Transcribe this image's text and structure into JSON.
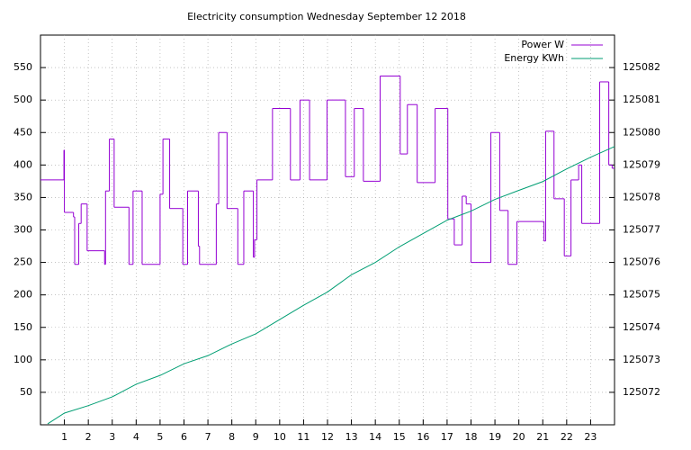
{
  "chart_data": {
    "type": "step-line-dual-axis",
    "title": "Electricity consumption Wednesday September 12 2018",
    "xlim": [
      0,
      24
    ],
    "xticks": [
      1,
      2,
      3,
      4,
      5,
      6,
      7,
      8,
      9,
      10,
      11,
      12,
      13,
      14,
      15,
      16,
      17,
      18,
      19,
      20,
      21,
      22,
      23
    ],
    "ylim": [
      0,
      600
    ],
    "yticks": [
      50,
      100,
      150,
      200,
      250,
      300,
      350,
      400,
      450,
      500,
      550
    ],
    "y2lim": [
      125071,
      125083
    ],
    "y2ticks": [
      125072,
      125073,
      125074,
      125075,
      125076,
      125077,
      125078,
      125079,
      125080,
      125081,
      125082
    ],
    "grid": true,
    "legend": "top-right",
    "series": [
      {
        "name": "Power W",
        "color": "#9400d3",
        "step": true,
        "x": [
          0,
          0.98,
          1.0,
          1.38,
          1.43,
          1.6,
          1.7,
          1.95,
          2.68,
          2.72,
          2.88,
          3.08,
          3.7,
          3.87,
          4.25,
          5.0,
          5.12,
          5.4,
          5.95,
          6.15,
          6.6,
          6.65,
          7.35,
          7.45,
          7.8,
          8.25,
          8.5,
          8.9,
          8.95,
          9.05,
          9.7,
          10.45,
          10.85,
          11.25,
          11.98,
          12.75,
          13.12,
          13.5,
          14.2,
          15.04,
          15.34,
          15.75,
          16.5,
          17.03,
          17.3,
          17.63,
          17.8,
          18.0,
          18.83,
          19.2,
          19.55,
          19.92,
          21.05,
          21.12,
          21.47,
          21.9,
          22.18,
          22.5,
          22.63,
          23.38,
          23.76,
          23.9
        ],
        "values": [
          377,
          423,
          327,
          320,
          247,
          310,
          340,
          268,
          247,
          360,
          440,
          335,
          247,
          360,
          247,
          355,
          440,
          333,
          247,
          360,
          275,
          247,
          340,
          450,
          333,
          247,
          360,
          258,
          285,
          377,
          487,
          377,
          500,
          377,
          500,
          382,
          487,
          375,
          537,
          417,
          493,
          373,
          487,
          317,
          277,
          352,
          340,
          250,
          450,
          330,
          247,
          313,
          283,
          452,
          348,
          260,
          377,
          400,
          310,
          528,
          400,
          395
        ]
      },
      {
        "name": "Energy KWh",
        "color": "#009e73",
        "axis": "y2",
        "x": [
          0.3,
          1,
          2,
          3,
          4,
          5,
          6,
          7,
          8,
          9,
          10,
          11,
          12,
          13,
          14,
          15,
          16,
          17,
          18,
          19,
          20,
          21,
          22,
          23,
          24
        ],
        "values": [
          125071.03,
          125071.36,
          125071.59,
          125071.86,
          125072.25,
          125072.52,
          125072.88,
          125073.13,
          125073.49,
          125073.8,
          125074.24,
          125074.68,
          125075.09,
          125075.62,
          125076.0,
          125076.48,
          125076.89,
          125077.3,
          125077.58,
          125077.94,
          125078.22,
          125078.49,
          125078.88,
          125079.24,
          125079.57
        ]
      }
    ]
  }
}
